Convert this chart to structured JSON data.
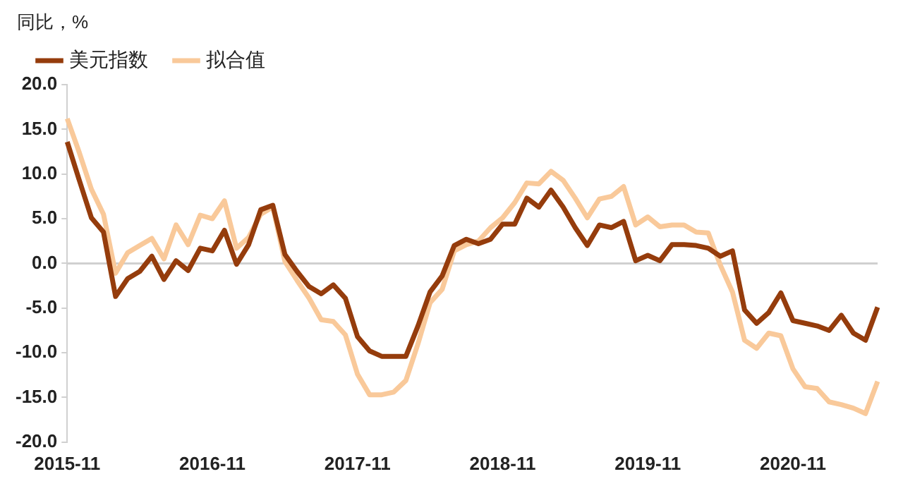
{
  "chart_data": {
    "type": "line",
    "ylabel": "同比，%",
    "categories": [
      "2015-11",
      null,
      null,
      null,
      null,
      null,
      null,
      null,
      null,
      null,
      null,
      null,
      "2016-11",
      null,
      null,
      null,
      null,
      null,
      null,
      null,
      null,
      null,
      null,
      null,
      "2017-11",
      null,
      null,
      null,
      null,
      null,
      null,
      null,
      null,
      null,
      null,
      null,
      "2018-11",
      null,
      null,
      null,
      null,
      null,
      null,
      null,
      null,
      null,
      null,
      null,
      "2019-11",
      null,
      null,
      null,
      null,
      null,
      null,
      null,
      null,
      null,
      null,
      null,
      "2020-11",
      null,
      null,
      null,
      null,
      null,
      null,
      null
    ],
    "series": [
      {
        "name": "美元指数",
        "color": "#953c0c",
        "values": [
          13.6,
          9.3,
          5.1,
          3.5,
          -3.7,
          -1.7,
          -0.9,
          0.8,
          -1.8,
          0.3,
          -0.8,
          1.7,
          1.4,
          3.7,
          -0.1,
          2.1,
          6.0,
          6.5,
          1.0,
          -0.9,
          -2.6,
          -3.4,
          -2.4,
          -3.9,
          -8.2,
          -9.8,
          -10.4,
          -10.4,
          -10.4,
          -7.0,
          -3.2,
          -1.4,
          2.0,
          2.7,
          2.2,
          2.7,
          4.4,
          4.4,
          7.3,
          6.3,
          8.2,
          6.3,
          4.0,
          2.0,
          4.3,
          4.0,
          4.7,
          0.3,
          0.9,
          0.3,
          2.1,
          2.1,
          2.0,
          1.7,
          0.8,
          1.4,
          -5.2,
          -6.7,
          -5.5,
          -3.3,
          -6.4,
          -6.7,
          -7.0,
          -7.5,
          -5.8,
          -7.8,
          -8.6,
          -4.9
        ]
      },
      {
        "name": "拟合值",
        "color": "#f9c99a",
        "values": [
          16.2,
          12.4,
          8.3,
          5.5,
          -1.1,
          1.2,
          2.0,
          2.8,
          0.5,
          4.3,
          2.1,
          5.4,
          5.0,
          7.0,
          1.7,
          2.9,
          5.5,
          6.3,
          0.2,
          -1.9,
          -3.9,
          -6.3,
          -6.5,
          -8.0,
          -12.4,
          -14.7,
          -14.7,
          -14.4,
          -13.1,
          -9.0,
          -4.4,
          -2.9,
          1.4,
          2.1,
          2.5,
          4.0,
          5.1,
          6.8,
          9.0,
          8.9,
          10.3,
          9.3,
          7.3,
          5.1,
          7.2,
          7.5,
          8.6,
          4.3,
          5.2,
          4.1,
          4.3,
          4.3,
          3.5,
          3.4,
          -0.2,
          -3.2,
          -8.6,
          -9.5,
          -7.8,
          -8.1,
          -11.8,
          -13.8,
          -14.0,
          -15.5,
          -15.8,
          -16.2,
          -16.8,
          -13.2
        ]
      }
    ],
    "ylim": [
      -20,
      20
    ],
    "yticks": [
      {
        "value": -20,
        "label": "-20.0"
      },
      {
        "value": -15,
        "label": "-15.0"
      },
      {
        "value": -10,
        "label": "-10.0"
      },
      {
        "value": -5,
        "label": "-5.0"
      },
      {
        "value": 0,
        "label": "0.0"
      },
      {
        "value": 5,
        "label": "5.0"
      },
      {
        "value": 10,
        "label": "10.0"
      },
      {
        "value": 15,
        "label": "15.0"
      },
      {
        "value": 20,
        "label": "20.0"
      }
    ],
    "ref_lines": [
      {
        "axis": "y",
        "value": 0,
        "color": "#d0d0d0"
      }
    ],
    "grid": false,
    "legend": "top",
    "marker": "none",
    "line_style": "solid"
  }
}
